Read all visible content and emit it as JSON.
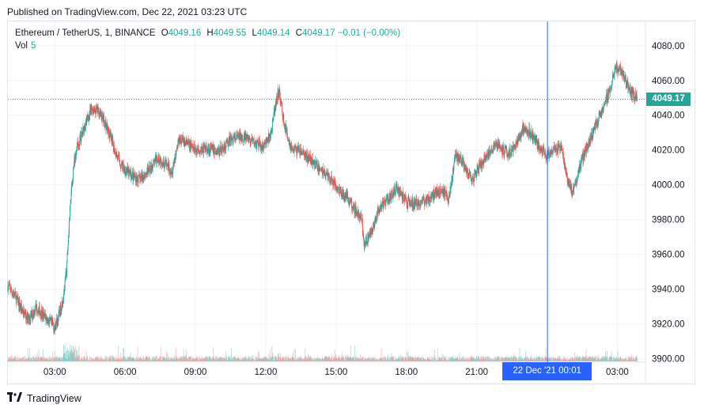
{
  "header": {
    "published": "Published on TradingView.com, Dec 22, 2021 03:23 UTC"
  },
  "legend": {
    "symbol": "Ethereum / TetherUS, 1, BINANCE",
    "o_label": "O",
    "o_value": "4049.16",
    "h_label": "H",
    "h_value": "4049.55",
    "l_label": "L",
    "l_value": "4049.14",
    "c_label": "C",
    "c_value": "4049.17",
    "change": "−0.01 (−0.00%)",
    "vol_label": "Vol",
    "vol_value": "5"
  },
  "price_tag": "4049.17",
  "crosshair_label": "22 Dec '21   00:01",
  "footer": {
    "brand": "TradingView"
  },
  "colors": {
    "up": "#26a69a",
    "down": "#ef5350",
    "crosshair": "#2962ff",
    "grid": "#f0f3fa"
  },
  "chart_data": {
    "type": "candlestick",
    "y_ticks": [
      4080,
      4060,
      4040,
      4020,
      4000,
      3980,
      3960,
      3940,
      3920,
      3900
    ],
    "y_tick_labels": [
      "4080.00",
      "4060.00",
      "4040.00",
      "4020.00",
      "4000.00",
      "3980.00",
      "3960.00",
      "3940.00",
      "3920.00",
      "3900.00"
    ],
    "ylim": [
      3898,
      4094
    ],
    "x_ticks": [
      "03:00",
      "06:00",
      "09:00",
      "12:00",
      "15:00",
      "18:00",
      "21:00",
      "03:00"
    ],
    "x_tick_hours": [
      3,
      6,
      9,
      12,
      15,
      18,
      21,
      27
    ],
    "xlim_hours": [
      1.0,
      28.2
    ],
    "last_price": 4049.17,
    "crosshair_hour": 24.02,
    "close_path": [
      [
        1.0,
        3942
      ],
      [
        1.3,
        3936
      ],
      [
        1.6,
        3928
      ],
      [
        1.9,
        3922
      ],
      [
        2.2,
        3930
      ],
      [
        2.5,
        3925
      ],
      [
        2.8,
        3921
      ],
      [
        3.0,
        3918
      ],
      [
        3.2,
        3926
      ],
      [
        3.4,
        3938
      ],
      [
        3.5,
        3952
      ],
      [
        3.6,
        3975
      ],
      [
        3.7,
        3995
      ],
      [
        3.8,
        4010
      ],
      [
        3.9,
        4020
      ],
      [
        4.1,
        4027
      ],
      [
        4.3,
        4035
      ],
      [
        4.6,
        4044
      ],
      [
        4.9,
        4042
      ],
      [
        5.2,
        4034
      ],
      [
        5.5,
        4022
      ],
      [
        5.8,
        4012
      ],
      [
        6.2,
        4006
      ],
      [
        6.6,
        4003
      ],
      [
        7.0,
        4008
      ],
      [
        7.4,
        4016
      ],
      [
        7.8,
        4011
      ],
      [
        8.0,
        4008
      ],
      [
        8.3,
        4027
      ],
      [
        8.6,
        4024
      ],
      [
        9.0,
        4020
      ],
      [
        9.5,
        4021
      ],
      [
        10.0,
        4019
      ],
      [
        10.5,
        4026
      ],
      [
        11.0,
        4028
      ],
      [
        11.5,
        4024
      ],
      [
        11.9,
        4022
      ],
      [
        12.2,
        4028
      ],
      [
        12.4,
        4044
      ],
      [
        12.55,
        4055
      ],
      [
        12.8,
        4034
      ],
      [
        13.1,
        4021
      ],
      [
        13.6,
        4018
      ],
      [
        14.0,
        4013
      ],
      [
        14.4,
        4008
      ],
      [
        14.8,
        4003
      ],
      [
        15.2,
        3996
      ],
      [
        15.5,
        3993
      ],
      [
        15.8,
        3986
      ],
      [
        16.1,
        3980
      ],
      [
        16.2,
        3966
      ],
      [
        16.5,
        3972
      ],
      [
        16.8,
        3985
      ],
      [
        17.2,
        3992
      ],
      [
        17.6,
        3998
      ],
      [
        18.0,
        3990
      ],
      [
        18.4,
        3989
      ],
      [
        18.8,
        3991
      ],
      [
        19.2,
        3995
      ],
      [
        19.5,
        3998
      ],
      [
        19.8,
        3991
      ],
      [
        20.1,
        4018
      ],
      [
        20.4,
        4012
      ],
      [
        20.8,
        4003
      ],
      [
        21.2,
        4012
      ],
      [
        21.5,
        4018
      ],
      [
        21.8,
        4024
      ],
      [
        22.1,
        4020
      ],
      [
        22.4,
        4018
      ],
      [
        22.7,
        4024
      ],
      [
        23.0,
        4033
      ],
      [
        23.3,
        4030
      ],
      [
        23.6,
        4023
      ],
      [
        24.0,
        4017
      ],
      [
        24.3,
        4020
      ],
      [
        24.6,
        4021
      ],
      [
        24.9,
        4002
      ],
      [
        25.1,
        3996
      ],
      [
        25.3,
        4005
      ],
      [
        25.5,
        4015
      ],
      [
        25.8,
        4025
      ],
      [
        26.1,
        4035
      ],
      [
        26.4,
        4045
      ],
      [
        26.7,
        4055
      ],
      [
        26.9,
        4068
      ],
      [
        27.1,
        4067
      ],
      [
        27.3,
        4062
      ],
      [
        27.6,
        4053
      ],
      [
        27.85,
        4049.17
      ]
    ]
  }
}
